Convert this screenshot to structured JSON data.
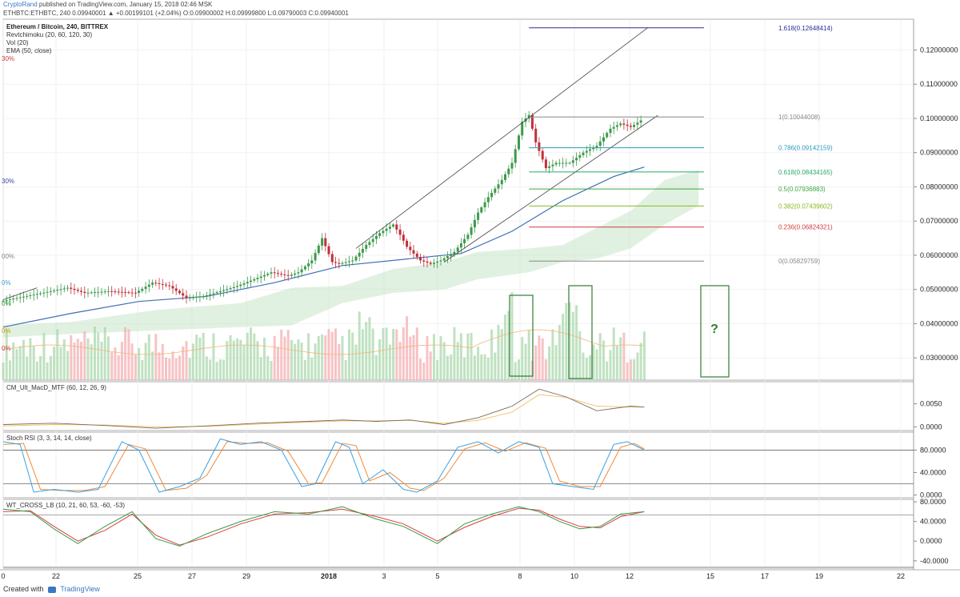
{
  "header": {
    "publisher": "CryptoRand",
    "published_text": "published on TradingView.com, January 15, 2018 02:46 MSK",
    "quote_line": "ETHBTC:ETHBTC, 240 0.09940001 ▲ +0.00199101 (+2.04%) O:0.09900002 H:0.09999800 L:0.09790003 C:0.09940001"
  },
  "legend": {
    "symbol": "Ethereum / Bitcoin, 240, BITTREX",
    "ind1": "Revtchimoku (20, 60, 120, 30)",
    "ind2": "Vol (20)",
    "ind3": "EMA (50, close)"
  },
  "left_markers": [
    {
      "text": "30%",
      "color": "#d23c3c"
    },
    {
      "text": "30%",
      "color": "#3f3fb0"
    },
    {
      "text": "00%",
      "color": "#888888"
    },
    {
      "text": "0%",
      "color": "#3aa0d0"
    },
    {
      "text": "0%",
      "color": "#3aa640"
    },
    {
      "text": "0%",
      "color": "#c8a000"
    },
    {
      "text": "0%",
      "color": "#d23c3c"
    }
  ],
  "fib_levels": [
    {
      "ratio": "1.618",
      "price": 0.12648414,
      "label": "1.618(0.12648414)",
      "color": "#2b2b9a"
    },
    {
      "ratio": "1",
      "price": 0.10044008,
      "label": "1(0.10044008)",
      "color": "#888888"
    },
    {
      "ratio": "0.786",
      "price": 0.09142159,
      "label": "0.786(0.09142159)",
      "color": "#2a9ab8"
    },
    {
      "ratio": "0.618",
      "price": 0.08434165,
      "label": "0.618(0.08434165)",
      "color": "#2aa86a"
    },
    {
      "ratio": "0.5",
      "price": 0.07936883,
      "label": "0.5(0.07936883)",
      "color": "#3aa640"
    },
    {
      "ratio": "0.382",
      "price": 0.07439602,
      "label": "0.382(0.07439602)",
      "color": "#8ab820"
    },
    {
      "ratio": "0.236",
      "price": 0.06824321,
      "label": "0.236(0.06824321)",
      "color": "#d23c3c"
    },
    {
      "ratio": "0",
      "price": 0.05829759,
      "label": "0(0.05829759)",
      "color": "#888888"
    }
  ],
  "question_mark": "?",
  "panes": {
    "macd": {
      "title": "CM_Ult_MacD_MTF (60, 12, 26, 9)",
      "ticks": [
        "0.0050",
        "0.0000"
      ]
    },
    "stoch": {
      "title": "Stoch RSI (3, 3, 14, 14, close)",
      "ticks": [
        "80.0000",
        "40.0000",
        "0.0000"
      ]
    },
    "wt": {
      "title": "WT_CROSS_LB (10, 21, 60, 53, -60, -53)",
      "ticks": [
        "80.0000",
        "40.0000",
        "0.0000",
        "-40.0000"
      ]
    }
  },
  "footer": {
    "created_with": "Created with",
    "logo_text": "TradingView"
  },
  "chart_data": {
    "type": "candlestick",
    "x_axis": {
      "ticks": [
        "0",
        "22",
        "25",
        "27",
        "29",
        "2018",
        "3",
        "5",
        "8",
        "10",
        "12",
        "15",
        "17",
        "19",
        "22"
      ]
    },
    "y_axis": {
      "ticks": [
        0.12,
        0.11,
        0.1,
        0.09,
        0.08,
        0.07,
        0.06,
        0.05,
        0.04,
        0.03
      ],
      "tick_labels": [
        "0.12000000",
        "0.11000000",
        "0.10000000",
        "0.09000000",
        "0.08000000",
        "0.07000000",
        "0.06000000",
        "0.05000000",
        "0.04000000",
        "0.03000000"
      ],
      "range": [
        0.0235,
        0.129
      ]
    },
    "last_price": 0.09940001,
    "price_path": [
      [
        0,
        0.0465
      ],
      [
        10,
        0.0485
      ],
      [
        20,
        0.0505
      ],
      [
        25,
        0.049
      ],
      [
        32,
        0.0495
      ],
      [
        40,
        0.049
      ],
      [
        45,
        0.052
      ],
      [
        50,
        0.051
      ],
      [
        55,
        0.0475
      ],
      [
        60,
        0.048
      ],
      [
        65,
        0.0495
      ],
      [
        70,
        0.051
      ],
      [
        75,
        0.053
      ],
      [
        80,
        0.055
      ],
      [
        85,
        0.054
      ],
      [
        88,
        0.055
      ],
      [
        92,
        0.0585
      ],
      [
        95,
        0.065
      ],
      [
        98,
        0.058
      ],
      [
        100,
        0.0575
      ],
      [
        104,
        0.0585
      ],
      [
        108,
        0.063
      ],
      [
        112,
        0.0665
      ],
      [
        116,
        0.069
      ],
      [
        118,
        0.066
      ],
      [
        120,
        0.0625
      ],
      [
        124,
        0.0585
      ],
      [
        127,
        0.0575
      ],
      [
        130,
        0.0585
      ],
      [
        134,
        0.061
      ],
      [
        138,
        0.066
      ],
      [
        141,
        0.0725
      ],
      [
        144,
        0.077
      ],
      [
        148,
        0.082
      ],
      [
        151,
        0.087
      ],
      [
        154,
        0.099
      ],
      [
        156,
        0.101
      ],
      [
        158,
        0.093
      ],
      [
        161,
        0.0855
      ],
      [
        164,
        0.087
      ],
      [
        168,
        0.087
      ],
      [
        172,
        0.09
      ],
      [
        176,
        0.092
      ],
      [
        180,
        0.097
      ],
      [
        183,
        0.0985
      ],
      [
        186,
        0.0975
      ],
      [
        189,
        0.0994
      ]
    ],
    "ema50_path": [
      [
        0,
        0.039
      ],
      [
        20,
        0.043
      ],
      [
        40,
        0.0465
      ],
      [
        60,
        0.048
      ],
      [
        80,
        0.052
      ],
      [
        100,
        0.057
      ],
      [
        120,
        0.059
      ],
      [
        135,
        0.0605
      ],
      [
        150,
        0.067
      ],
      [
        165,
        0.076
      ],
      [
        180,
        0.083
      ],
      [
        189,
        0.0858
      ]
    ],
    "cloud_upper": [
      [
        0,
        0.0395
      ],
      [
        20,
        0.0405
      ],
      [
        45,
        0.044
      ],
      [
        70,
        0.046
      ],
      [
        85,
        0.0505
      ],
      [
        100,
        0.051
      ],
      [
        115,
        0.056
      ],
      [
        130,
        0.058
      ],
      [
        140,
        0.061
      ],
      [
        155,
        0.062
      ],
      [
        165,
        0.063
      ],
      [
        175,
        0.068
      ],
      [
        185,
        0.073
      ],
      [
        195,
        0.082
      ],
      [
        205,
        0.085
      ]
    ],
    "cloud_lower": [
      [
        0,
        0.036
      ],
      [
        20,
        0.037
      ],
      [
        45,
        0.038
      ],
      [
        70,
        0.039
      ],
      [
        85,
        0.0395
      ],
      [
        100,
        0.046
      ],
      [
        115,
        0.049
      ],
      [
        130,
        0.05
      ],
      [
        140,
        0.053
      ],
      [
        155,
        0.055
      ],
      [
        165,
        0.058
      ],
      [
        175,
        0.059
      ],
      [
        185,
        0.062
      ],
      [
        195,
        0.069
      ],
      [
        205,
        0.0745
      ]
    ],
    "channel_lines": [
      {
        "from": [
          104,
          0.062
        ],
        "to": [
          190,
          0.1265
        ]
      },
      {
        "from": [
          130,
          0.058
        ],
        "to": [
          193,
          0.1009
        ]
      },
      {
        "from": [
          0,
          0.047
        ],
        "to": [
          10,
          0.0505
        ]
      }
    ],
    "macd": {
      "macd_line": [
        [
          0,
          0.0005
        ],
        [
          15,
          0.0008
        ],
        [
          30,
          0.0003
        ],
        [
          45,
          -0.0003
        ],
        [
          60,
          0.0002
        ],
        [
          75,
          0.0008
        ],
        [
          90,
          0.0012
        ],
        [
          100,
          0.0015
        ],
        [
          110,
          0.0012
        ],
        [
          120,
          0.0015
        ],
        [
          130,
          0.0005
        ],
        [
          140,
          0.002
        ],
        [
          150,
          0.0045
        ],
        [
          158,
          0.0082
        ],
        [
          166,
          0.0065
        ],
        [
          175,
          0.0035
        ],
        [
          185,
          0.0045
        ],
        [
          189,
          0.0043
        ]
      ],
      "signal_line": [
        [
          0,
          0.0002
        ],
        [
          15,
          0.0005
        ],
        [
          30,
          0.0004
        ],
        [
          45,
          0.0
        ],
        [
          60,
          0.0001
        ],
        [
          75,
          0.0006
        ],
        [
          90,
          0.001
        ],
        [
          100,
          0.0013
        ],
        [
          110,
          0.0013
        ],
        [
          120,
          0.0014
        ],
        [
          130,
          0.0008
        ],
        [
          140,
          0.0014
        ],
        [
          150,
          0.0032
        ],
        [
          158,
          0.007
        ],
        [
          166,
          0.0064
        ],
        [
          175,
          0.0045
        ],
        [
          185,
          0.0043
        ],
        [
          189,
          0.0043
        ]
      ],
      "y_range": [
        -0.0008,
        0.0098
      ]
    },
    "stoch_rsi": {
      "k_line": [
        [
          0,
          95
        ],
        [
          5,
          90
        ],
        [
          9,
          5
        ],
        [
          15,
          10
        ],
        [
          22,
          5
        ],
        [
          28,
          10
        ],
        [
          35,
          95
        ],
        [
          40,
          80
        ],
        [
          46,
          5
        ],
        [
          52,
          15
        ],
        [
          58,
          30
        ],
        [
          64,
          100
        ],
        [
          70,
          90
        ],
        [
          76,
          95
        ],
        [
          82,
          80
        ],
        [
          88,
          15
        ],
        [
          92,
          20
        ],
        [
          98,
          95
        ],
        [
          102,
          85
        ],
        [
          106,
          20
        ],
        [
          112,
          45
        ],
        [
          118,
          10
        ],
        [
          122,
          5
        ],
        [
          128,
          25
        ],
        [
          134,
          85
        ],
        [
          140,
          95
        ],
        [
          146,
          75
        ],
        [
          152,
          95
        ],
        [
          158,
          85
        ],
        [
          162,
          20
        ],
        [
          168,
          15
        ],
        [
          174,
          10
        ],
        [
          180,
          90
        ],
        [
          184,
          95
        ],
        [
          189,
          80
        ]
      ],
      "d_line": [
        [
          0,
          90
        ],
        [
          6,
          92
        ],
        [
          11,
          10
        ],
        [
          17,
          8
        ],
        [
          24,
          8
        ],
        [
          30,
          15
        ],
        [
          37,
          90
        ],
        [
          42,
          82
        ],
        [
          48,
          8
        ],
        [
          54,
          12
        ],
        [
          60,
          35
        ],
        [
          66,
          95
        ],
        [
          72,
          92
        ],
        [
          78,
          93
        ],
        [
          84,
          78
        ],
        [
          90,
          20
        ],
        [
          94,
          22
        ],
        [
          100,
          92
        ],
        [
          104,
          88
        ],
        [
          108,
          25
        ],
        [
          114,
          40
        ],
        [
          120,
          12
        ],
        [
          124,
          8
        ],
        [
          130,
          30
        ],
        [
          136,
          82
        ],
        [
          142,
          93
        ],
        [
          148,
          78
        ],
        [
          154,
          93
        ],
        [
          160,
          83
        ],
        [
          164,
          25
        ],
        [
          170,
          15
        ],
        [
          176,
          15
        ],
        [
          182,
          85
        ],
        [
          186,
          92
        ],
        [
          189,
          82
        ]
      ],
      "y_range": [
        -5,
        112
      ],
      "levels": [
        80,
        20
      ]
    },
    "wt_cross": {
      "wt1": [
        [
          0,
          65
        ],
        [
          8,
          60
        ],
        [
          15,
          25
        ],
        [
          22,
          -5
        ],
        [
          30,
          30
        ],
        [
          38,
          60
        ],
        [
          45,
          5
        ],
        [
          52,
          -10
        ],
        [
          60,
          15
        ],
        [
          70,
          40
        ],
        [
          80,
          60
        ],
        [
          90,
          55
        ],
        [
          100,
          70
        ],
        [
          110,
          45
        ],
        [
          118,
          30
        ],
        [
          128,
          -5
        ],
        [
          136,
          35
        ],
        [
          144,
          55
        ],
        [
          152,
          70
        ],
        [
          158,
          60
        ],
        [
          164,
          40
        ],
        [
          170,
          25
        ],
        [
          176,
          30
        ],
        [
          182,
          55
        ],
        [
          189,
          60
        ]
      ],
      "wt2": [
        [
          0,
          60
        ],
        [
          8,
          62
        ],
        [
          15,
          30
        ],
        [
          22,
          0
        ],
        [
          30,
          22
        ],
        [
          38,
          55
        ],
        [
          45,
          12
        ],
        [
          52,
          -8
        ],
        [
          60,
          8
        ],
        [
          70,
          35
        ],
        [
          80,
          55
        ],
        [
          90,
          58
        ],
        [
          100,
          65
        ],
        [
          110,
          50
        ],
        [
          118,
          35
        ],
        [
          128,
          0
        ],
        [
          136,
          28
        ],
        [
          144,
          50
        ],
        [
          152,
          67
        ],
        [
          158,
          63
        ],
        [
          164,
          45
        ],
        [
          170,
          30
        ],
        [
          176,
          27
        ],
        [
          182,
          50
        ],
        [
          189,
          60
        ]
      ],
      "y_range": [
        -55,
        85
      ],
      "levels": [
        53,
        -53
      ]
    }
  }
}
